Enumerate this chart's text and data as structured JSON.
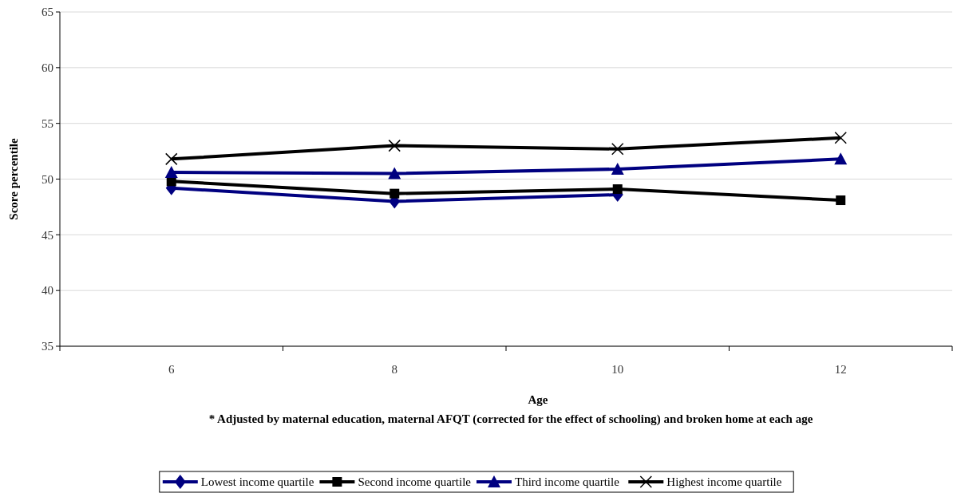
{
  "chart_data": {
    "type": "line",
    "xlabel": "Age",
    "ylabel": "Score percentile",
    "annotations": [
      "* Adjusted by maternal education, maternal AFQT (corrected for the effect of schooling) and broken home at each age"
    ],
    "categories": [
      "6",
      "8",
      "10",
      "12"
    ],
    "series": [
      {
        "name": "Lowest income quartile",
        "color": "#000080",
        "marker": "diamond",
        "values": [
          49.2,
          48.0,
          48.6,
          null
        ]
      },
      {
        "name": "Second income quartile",
        "color": "#000000",
        "marker": "square",
        "values": [
          49.8,
          48.7,
          49.1,
          48.1
        ]
      },
      {
        "name": "Third income quartile",
        "color": "#000080",
        "marker": "triangle",
        "values": [
          50.6,
          50.5,
          50.9,
          51.8
        ]
      },
      {
        "name": "Highest income quartile",
        "color": "#000000",
        "marker": "cross",
        "values": [
          51.8,
          53.0,
          52.7,
          53.7
        ]
      }
    ],
    "ylim": [
      35,
      65
    ],
    "yticks": [
      35,
      40,
      45,
      50,
      55,
      60,
      65
    ],
    "grid": "y",
    "legend": "bottom"
  }
}
